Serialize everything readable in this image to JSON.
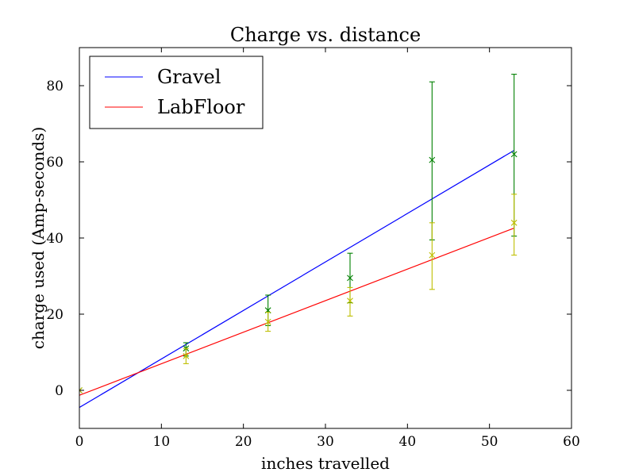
{
  "chart_data": {
    "type": "line",
    "title": "Charge vs. distance",
    "xlabel": "inches travelled",
    "ylabel": "charge used (Amp-seconds)",
    "xlim": [
      0,
      60
    ],
    "ylim": [
      -10,
      90
    ],
    "xticks": [
      0,
      10,
      20,
      30,
      40,
      50,
      60
    ],
    "yticks": [
      0,
      20,
      40,
      60,
      80
    ],
    "grid": false,
    "legend_position": "top-left",
    "fit_lines": [
      {
        "name": "Gravel",
        "color": "#0000ff",
        "x": [
          0,
          53
        ],
        "y": [
          -4.5,
          63
        ]
      },
      {
        "name": "LabFloor",
        "color": "#ff0000",
        "x": [
          0,
          53
        ],
        "y": [
          -1.3,
          42.6
        ]
      }
    ],
    "errorbar_series": [
      {
        "color": "#008000",
        "points": [
          {
            "x": 0,
            "y": 0,
            "yerr_low": 0,
            "yerr_high": 0
          },
          {
            "x": 13,
            "y": 11,
            "yerr_low": 9,
            "yerr_high": 12.5
          },
          {
            "x": 23,
            "y": 21,
            "yerr_low": 17,
            "yerr_high": 25
          },
          {
            "x": 33,
            "y": 29.5,
            "yerr_low": 23,
            "yerr_high": 36
          },
          {
            "x": 43,
            "y": 60.5,
            "yerr_low": 39.5,
            "yerr_high": 81
          },
          {
            "x": 53,
            "y": 62,
            "yerr_low": 40.5,
            "yerr_high": 83
          }
        ]
      },
      {
        "color": "#bfbf00",
        "points": [
          {
            "x": 0,
            "y": 0,
            "yerr_low": 0,
            "yerr_high": 0
          },
          {
            "x": 13,
            "y": 9,
            "yerr_low": 7,
            "yerr_high": 11
          },
          {
            "x": 23,
            "y": 18,
            "yerr_low": 15.5,
            "yerr_high": 20.5
          },
          {
            "x": 33,
            "y": 23.5,
            "yerr_low": 19.5,
            "yerr_high": 27
          },
          {
            "x": 43,
            "y": 35.5,
            "yerr_low": 26.5,
            "yerr_high": 44
          },
          {
            "x": 53,
            "y": 44,
            "yerr_low": 35.5,
            "yerr_high": 51.5
          }
        ]
      }
    ]
  }
}
